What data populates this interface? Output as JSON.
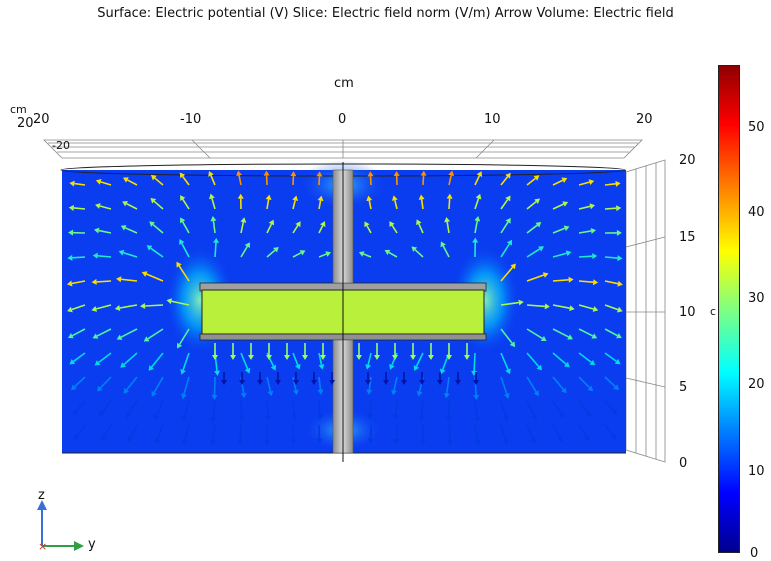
{
  "title": "Surface: Electric potential (V)  Slice: Electric field norm (V/m)  Arrow Volume: Electric field",
  "axes": {
    "top_unit": "cm",
    "corner_unit": "cm",
    "corner_values": [
      "20",
      "20",
      "-20"
    ],
    "top_ticks": [
      "-10",
      "0",
      "10",
      "20"
    ],
    "right_ticks": [
      "20",
      "15",
      "10",
      "5",
      "0"
    ],
    "right_unit_fragment": "c"
  },
  "colorbar": {
    "ticks": [
      "50",
      "40",
      "30",
      "20",
      "10",
      "0"
    ],
    "min": 0,
    "max": 57,
    "colormap": "rainbow"
  },
  "triad": {
    "z_label": "z",
    "y_label": "y",
    "z_color": "#3a6fd8",
    "y_color": "#2ea043",
    "x_color": "#c0392b"
  },
  "colors": {
    "field_background": "#0a3cf0",
    "electrode": "#b8f03c",
    "rod": "#b4b4b4"
  }
}
